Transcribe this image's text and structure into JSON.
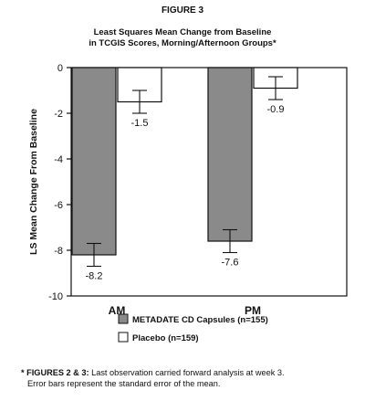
{
  "figure_label": "FIGURE 3",
  "chart_data": {
    "type": "bar",
    "title": "Least Squares Mean Change from Baseline",
    "subtitle": "in TCGIS Scores, Morning/Afternoon Groups*",
    "ylabel": "LS Mean Change From Baseline",
    "xlabel": "",
    "categories": [
      "AM",
      "PM"
    ],
    "ylim": [
      -10,
      0
    ],
    "yticks": [
      "0",
      "-2",
      "-4",
      "-6",
      "-8",
      "-10"
    ],
    "series": [
      {
        "name": "METADATE CD Capsules (n=155)",
        "values": [
          -8.2,
          -7.6
        ],
        "error": [
          0.5,
          0.5
        ],
        "color": "#8a8a8a"
      },
      {
        "name": "Placebo (n=159)",
        "values": [
          -1.5,
          -0.9
        ],
        "error": [
          0.5,
          0.5
        ],
        "color": "#ffffff"
      }
    ],
    "data_labels": [
      [
        "-8.2",
        "-7.6"
      ],
      [
        "-1.5",
        "-0.9"
      ]
    ],
    "grid": false,
    "legend_position": "bottom"
  },
  "footnote": {
    "lead": "* FIGURES 2 & 3:",
    "line1_rest": " Last observation carried forward analysis at week 3.",
    "line2": "Error bars represent the standard error of the mean."
  }
}
